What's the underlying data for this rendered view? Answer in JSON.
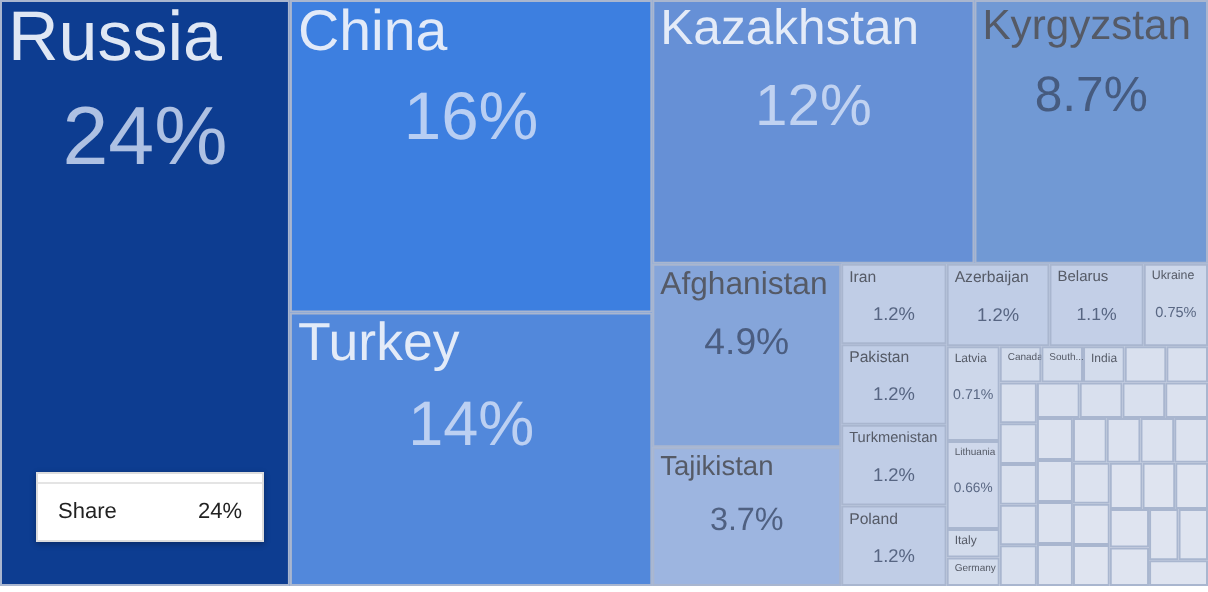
{
  "chart_data": {
    "type": "other",
    "categories": [
      "Russia",
      "China",
      "Turkey",
      "Kazakhstan",
      "Kyrgyzstan",
      "Afghanistan",
      "Tajikistan",
      "Iran",
      "Pakistan",
      "Turkmenistan",
      "Poland",
      "Azerbaijan",
      "Belarus",
      "Ukraine",
      "Latvia",
      "Lithuania",
      "Italy",
      "Germany",
      "Canada",
      "South...",
      "India",
      null,
      null,
      null,
      null,
      null,
      null,
      null,
      null,
      null,
      null,
      null,
      null,
      null,
      null,
      null,
      null,
      null,
      null,
      null,
      null,
      null,
      null,
      null,
      null,
      null,
      null,
      null,
      null,
      null,
      null
    ],
    "values": [
      24,
      16,
      14,
      12,
      8.7,
      4.9,
      3.7,
      1.2,
      1.2,
      1.2,
      1.2,
      1.2,
      1.1,
      0.75,
      0.71,
      0.66,
      null,
      null,
      null,
      null,
      null,
      null,
      null,
      null,
      null,
      null,
      null,
      null,
      null,
      null,
      null,
      null,
      null,
      null,
      null,
      null,
      null,
      null,
      null,
      null,
      null,
      null,
      null,
      null,
      null,
      null,
      null,
      null,
      null,
      null,
      null
    ],
    "value_labels": [
      "24%",
      "16%",
      "14%",
      "12%",
      "8.7%",
      "4.9%",
      "3.7%",
      "1.2%",
      "1.2%",
      "1.2%",
      "1.2%",
      "1.2%",
      "1.1%",
      "0.75%",
      "0.71%",
      "0.66%",
      null,
      null,
      null,
      null,
      null,
      null,
      null,
      null,
      null,
      null,
      null,
      null,
      null,
      null,
      null,
      null,
      null,
      null,
      null,
      null,
      null,
      null,
      null,
      null,
      null,
      null,
      null,
      null,
      null,
      null,
      null,
      null,
      null,
      null,
      null
    ],
    "colors": [
      "#0d3d91",
      "#3d7fe0",
      "#5288db",
      "#6690d6",
      "#7199d4",
      "#85a5da",
      "#9db5e0",
      "#c0cde6",
      "#c0cde6",
      "#c0cde6",
      "#c0cde6",
      "#c0cde6",
      "#c3cfe7",
      "#cdd7ea",
      "#cdd7ea",
      "#cfd8eb",
      "#d3dcec",
      "#d3dcec",
      "#d3dcec",
      "#d3dcec",
      "#d3dcec",
      "#d9e0ee",
      "#d9e0ee",
      "#d9e0ee",
      "#d9e0ee",
      "#d9e0ee",
      "#d9e0ee",
      "#d9e0ee",
      "#d9e0ee",
      "#d9e0ee",
      "#d9e0ee",
      "#dce2ef",
      "#dce2ef",
      "#dce2ef",
      "#dce2ef",
      "#dce2ef",
      "#dce2ef",
      "#dce2ef",
      "#dce2ef",
      "#dce2ef",
      "#dce2ef",
      "#dfe4f0",
      "#dfe4f0",
      "#dfe4f0",
      "#dfe4f0",
      "#dfe4f0",
      "#dfe4f0",
      "#dfe4f0",
      "#dfe4f0",
      "#dfe4f0",
      "#dfe4f0"
    ],
    "annotations": [
      "Share",
      "24%"
    ]
  }
}
